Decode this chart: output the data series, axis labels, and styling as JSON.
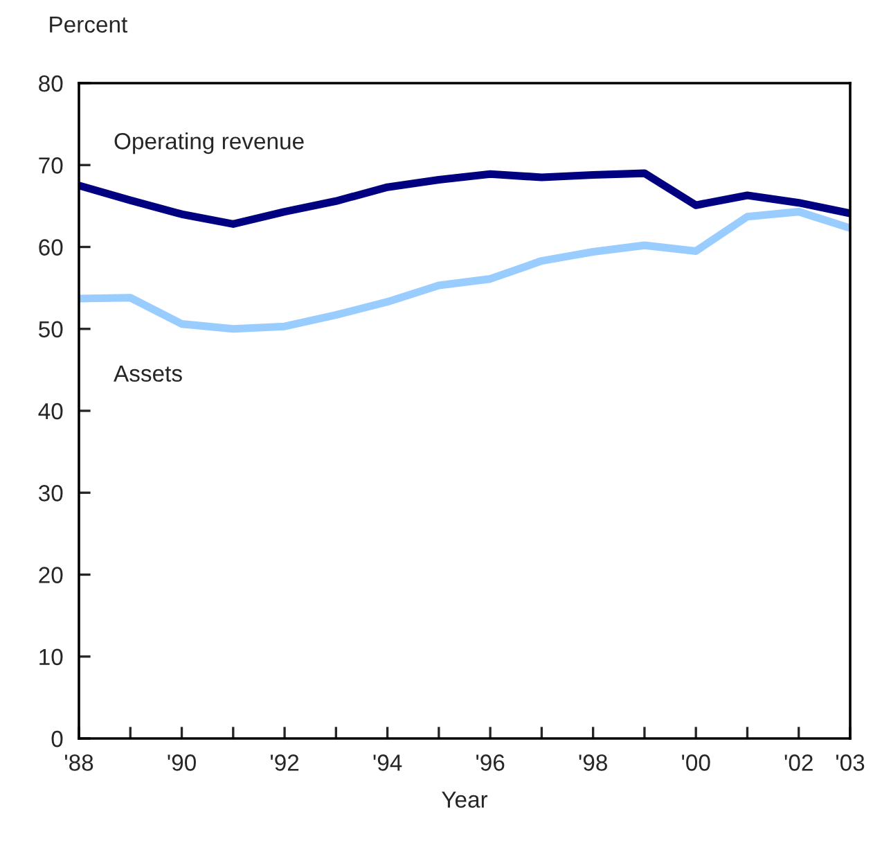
{
  "chart_data": {
    "type": "line",
    "xlabel": "Year",
    "ylabel": "Percent",
    "x": [
      1988,
      1989,
      1990,
      1991,
      1992,
      1993,
      1994,
      1995,
      1996,
      1997,
      1998,
      1999,
      2000,
      2001,
      2002,
      2003
    ],
    "series": [
      {
        "name": "Operating revenue",
        "color": "#000080",
        "values": [
          67.5,
          65.7,
          64,
          62.8,
          64.3,
          65.6,
          67.3,
          68.2,
          68.9,
          68.5,
          68.8,
          69,
          65.1,
          66.3,
          65.4,
          64.1
        ]
      },
      {
        "name": "Assets",
        "color": "#99ccff",
        "values": [
          53.7,
          53.8,
          50.6,
          50,
          50.3,
          51.7,
          53.3,
          55.3,
          56.1,
          58.3,
          59.4,
          60.2,
          59.5,
          63.7,
          64.3,
          62.3
        ]
      }
    ],
    "xlim": [
      1988,
      2003
    ],
    "ylim": [
      0,
      80
    ],
    "xticks": [
      {
        "value": 1988,
        "label": "'88"
      },
      {
        "value": 1989,
        "label": null
      },
      {
        "value": 1990,
        "label": "'90"
      },
      {
        "value": 1991,
        "label": null
      },
      {
        "value": 1992,
        "label": "'92"
      },
      {
        "value": 1993,
        "label": null
      },
      {
        "value": 1994,
        "label": "'94"
      },
      {
        "value": 1995,
        "label": null
      },
      {
        "value": 1996,
        "label": "'96"
      },
      {
        "value": 1997,
        "label": null
      },
      {
        "value": 1998,
        "label": "'98"
      },
      {
        "value": 1999,
        "label": null
      },
      {
        "value": 2000,
        "label": "'00"
      },
      {
        "value": 2001,
        "label": null
      },
      {
        "value": 2002,
        "label": "'02"
      },
      {
        "value": 2003,
        "label": "'03"
      }
    ],
    "yticks": [
      0,
      10,
      20,
      30,
      40,
      50,
      60,
      70,
      80
    ],
    "grid": false,
    "legend": false,
    "marker": "none",
    "line_style": "solid"
  }
}
